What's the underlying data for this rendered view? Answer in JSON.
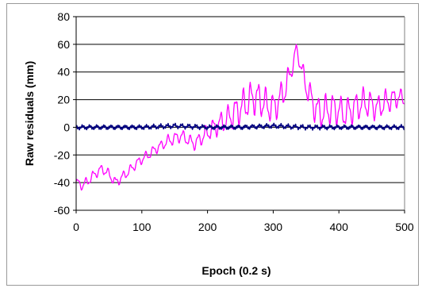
{
  "chart_data": {
    "type": "line",
    "title": "",
    "xlabel": "Epoch (0.2 s)",
    "ylabel": "Raw residuals (mm)",
    "xlim": [
      0,
      500
    ],
    "ylim": [
      -60,
      80
    ],
    "x_ticks": [
      "0",
      "100",
      "200",
      "300",
      "400",
      "500"
    ],
    "y_ticks": [
      "80",
      "60",
      "40",
      "20",
      "0",
      "-20",
      "-40",
      "-60"
    ],
    "grid": "horizontal",
    "legend": "none",
    "series": [
      {
        "color": "#ff00ff",
        "x": [
          0,
          10,
          20,
          30,
          40,
          50,
          60,
          70,
          80,
          90,
          100,
          110,
          120,
          130,
          140,
          150,
          160,
          170,
          180,
          190,
          200,
          210,
          220,
          230,
          240,
          250,
          260,
          270,
          280,
          290,
          300,
          310,
          320,
          330,
          335,
          340,
          350,
          360,
          370,
          380,
          390,
          400,
          410,
          420,
          430,
          440,
          450,
          460,
          470,
          480,
          490,
          500
        ],
        "values": [
          -40,
          -42,
          -38,
          -33,
          -30,
          -34,
          -40,
          -36,
          -32,
          -27,
          -23,
          -20,
          -16,
          -13,
          -10,
          -8,
          -6,
          -9,
          -12,
          -8,
          -4,
          0,
          3,
          6,
          10,
          14,
          18,
          22,
          20,
          16,
          14,
          20,
          30,
          45,
          58,
          48,
          30,
          18,
          10,
          12,
          14,
          12,
          10,
          13,
          16,
          18,
          16,
          14,
          18,
          20,
          22,
          20
        ],
        "amplitude": [
          4,
          4,
          4,
          4,
          4,
          4,
          4,
          4,
          4,
          4,
          4,
          4,
          4,
          4,
          5,
          5,
          5,
          5,
          5,
          6,
          7,
          8,
          9,
          10,
          12,
          13,
          14,
          14,
          14,
          13,
          12,
          12,
          12,
          6,
          3,
          6,
          10,
          12,
          13,
          13,
          13,
          12,
          12,
          12,
          12,
          12,
          11,
          10,
          10,
          9,
          8,
          6
        ]
      },
      {
        "color": "#000080",
        "x": [
          0,
          50,
          100,
          150,
          200,
          250,
          300,
          350,
          400,
          450,
          500
        ],
        "values": [
          0,
          0,
          0,
          1,
          0,
          0,
          1,
          0,
          0,
          0,
          0
        ],
        "amplitude": [
          2,
          2,
          2,
          2,
          2,
          2,
          2,
          2,
          2,
          2,
          2
        ]
      }
    ]
  }
}
